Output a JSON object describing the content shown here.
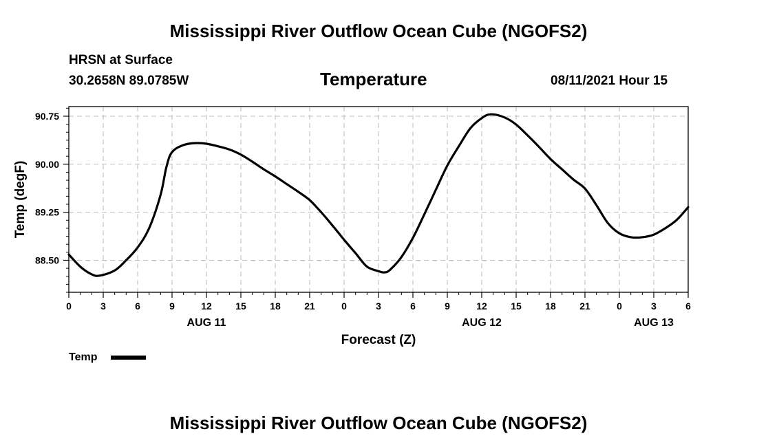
{
  "header": {
    "main_title": "Mississippi River Outflow Ocean Cube (NGOFS2)",
    "station": "HRSN at Surface",
    "coords": "30.2658N  89.0785W",
    "variable": "Temperature",
    "datetime": "08/11/2021 Hour 15"
  },
  "footer": {
    "title": "Mississippi River Outflow Ocean Cube (NGOFS2)"
  },
  "legend": {
    "label": "Temp",
    "color": "#000000"
  },
  "chart_data": {
    "type": "line",
    "title": "Temperature",
    "xlabel": "Forecast (Z)",
    "ylabel": "Temp (degF)",
    "grid": true,
    "x_range_hours": [
      0,
      54
    ],
    "ylim": [
      88.0,
      90.9
    ],
    "y_ticks": [
      88.5,
      89.25,
      90.0,
      90.75
    ],
    "y_tick_labels": [
      "88.50",
      "89.25",
      "90.00",
      "90.75"
    ],
    "x_ticks": [
      {
        "hour": 0,
        "label": "0"
      },
      {
        "hour": 3,
        "label": "3"
      },
      {
        "hour": 6,
        "label": "6"
      },
      {
        "hour": 9,
        "label": "9"
      },
      {
        "hour": 12,
        "label": "12"
      },
      {
        "hour": 15,
        "label": "15"
      },
      {
        "hour": 18,
        "label": "18"
      },
      {
        "hour": 21,
        "label": "21"
      },
      {
        "hour": 24,
        "label": "0"
      },
      {
        "hour": 27,
        "label": "3"
      },
      {
        "hour": 30,
        "label": "6"
      },
      {
        "hour": 33,
        "label": "9"
      },
      {
        "hour": 36,
        "label": "12"
      },
      {
        "hour": 39,
        "label": "15"
      },
      {
        "hour": 42,
        "label": "18"
      },
      {
        "hour": 45,
        "label": "21"
      },
      {
        "hour": 48,
        "label": "0"
      },
      {
        "hour": 51,
        "label": "3"
      },
      {
        "hour": 54,
        "label": "6"
      }
    ],
    "day_labels": [
      {
        "hour": 12,
        "label": "AUG 11"
      },
      {
        "hour": 36,
        "label": "AUG 12"
      },
      {
        "hour": 51,
        "label": "AUG 13"
      }
    ],
    "series": [
      {
        "name": "Temp",
        "color": "#000000",
        "points": [
          [
            0,
            88.59
          ],
          [
            1,
            88.4
          ],
          [
            2,
            88.28
          ],
          [
            2.7,
            88.26
          ],
          [
            4,
            88.34
          ],
          [
            5,
            88.5
          ],
          [
            6,
            88.7
          ],
          [
            7,
            89.0
          ],
          [
            8,
            89.52
          ],
          [
            8.5,
            89.95
          ],
          [
            9,
            90.19
          ],
          [
            10,
            90.3
          ],
          [
            11,
            90.33
          ],
          [
            12,
            90.32
          ],
          [
            13,
            90.28
          ],
          [
            14,
            90.23
          ],
          [
            15,
            90.15
          ],
          [
            16,
            90.04
          ],
          [
            17,
            89.92
          ],
          [
            18,
            89.81
          ],
          [
            19,
            89.69
          ],
          [
            20,
            89.57
          ],
          [
            21,
            89.44
          ],
          [
            22,
            89.25
          ],
          [
            23,
            89.04
          ],
          [
            24,
            88.82
          ],
          [
            25,
            88.61
          ],
          [
            26,
            88.4
          ],
          [
            27,
            88.33
          ],
          [
            27.5,
            88.31
          ],
          [
            28,
            88.35
          ],
          [
            29,
            88.55
          ],
          [
            30,
            88.85
          ],
          [
            31,
            89.22
          ],
          [
            32,
            89.6
          ],
          [
            33,
            89.98
          ],
          [
            34,
            90.28
          ],
          [
            35,
            90.56
          ],
          [
            36,
            90.72
          ],
          [
            36.8,
            90.78
          ],
          [
            38,
            90.73
          ],
          [
            39,
            90.62
          ],
          [
            40,
            90.45
          ],
          [
            41,
            90.27
          ],
          [
            42,
            90.08
          ],
          [
            43,
            89.92
          ],
          [
            44,
            89.76
          ],
          [
            45,
            89.62
          ],
          [
            46,
            89.36
          ],
          [
            47,
            89.08
          ],
          [
            48,
            88.92
          ],
          [
            49,
            88.86
          ],
          [
            50,
            88.86
          ],
          [
            51,
            88.9
          ],
          [
            52,
            89.0
          ],
          [
            53,
            89.13
          ],
          [
            54,
            89.33
          ]
        ]
      }
    ]
  }
}
